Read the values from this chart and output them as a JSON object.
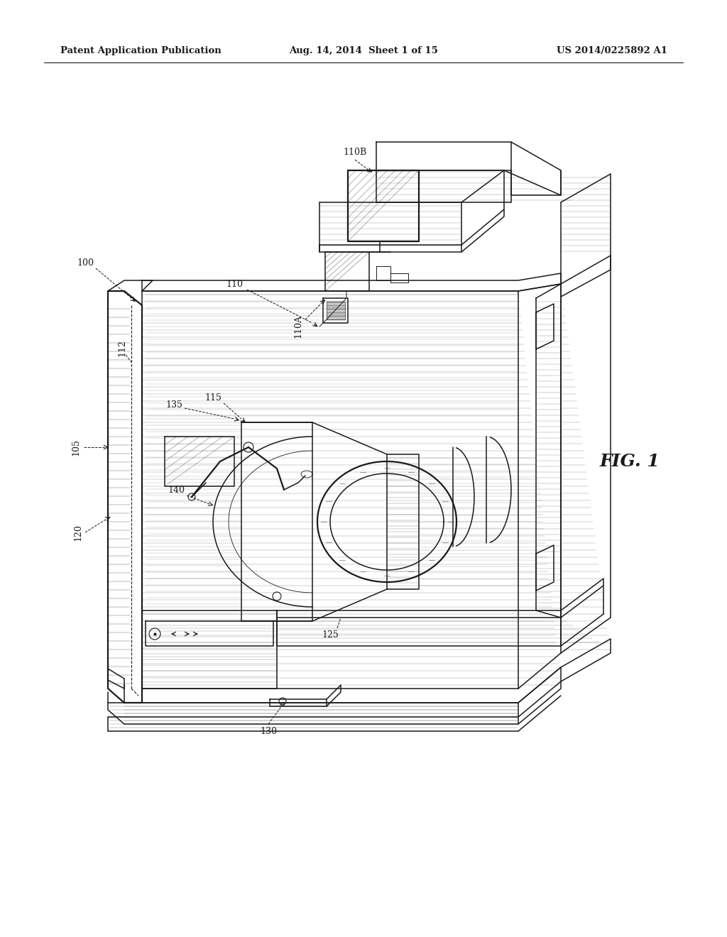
{
  "bg_color": "#ffffff",
  "header_left": "Patent Application Publication",
  "header_mid": "Aug. 14, 2014  Sheet 1 of 15",
  "header_right": "US 2014/0225892 A1",
  "fig_label": "FIG. 1",
  "col": "#1a1a1a",
  "lw_main": 1.1,
  "lw_thin": 0.6,
  "lw_thick": 1.6
}
